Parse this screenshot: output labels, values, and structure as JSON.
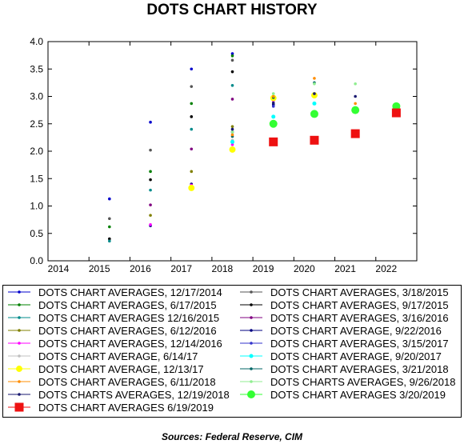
{
  "title": "DOTS CHART HISTORY",
  "source": "Sources:  Federal Reserve, CIM",
  "chart_data": {
    "type": "scatter",
    "title": "DOTS CHART HISTORY",
    "xlabel": "",
    "ylabel": "",
    "xlim": [
      2014,
      2023
    ],
    "ylim": [
      0.0,
      4.0
    ],
    "x_ticks": [
      "2014",
      "2015",
      "2016",
      "2017",
      "2018",
      "2019",
      "2020",
      "2021",
      "2022"
    ],
    "y_ticks": [
      "0.0",
      "0.5",
      "1.0",
      "1.5",
      "2.0",
      "2.5",
      "3.0",
      "3.5",
      "4.0"
    ],
    "grid": false,
    "legend_position": "below",
    "series": [
      {
        "name": "DOTS CHART AVERAGES, 12/17/2014",
        "color": "#0000cc",
        "shape": "dot",
        "x": [
          2015.5,
          2016.5,
          2017.5,
          2018.5
        ],
        "y": [
          1.13,
          2.53,
          3.5,
          3.78
        ]
      },
      {
        "name": "DOTS CHART AVERAGES, 3/18/2015",
        "color": "#555555",
        "shape": "dot",
        "x": [
          2015.5,
          2016.5,
          2017.5,
          2018.5
        ],
        "y": [
          0.77,
          2.02,
          3.18,
          3.66
        ]
      },
      {
        "name": "DOTS CHART AVERAGES, 6/17/2015",
        "color": "#008000",
        "shape": "dot",
        "x": [
          2015.5,
          2016.5,
          2017.5,
          2018.5
        ],
        "y": [
          0.62,
          1.63,
          2.87,
          3.74
        ]
      },
      {
        "name": "DOTS CHART AVERAGES, 9/17/2015",
        "color": "#000000",
        "shape": "dot",
        "x": [
          2015.5,
          2016.5,
          2017.5,
          2018.5
        ],
        "y": [
          0.4,
          1.48,
          2.63,
          3.45
        ]
      },
      {
        "name": "DOTS CHART AVERAGES 12/16/2015",
        "color": "#008b8b",
        "shape": "dot",
        "x": [
          2015.5,
          2016.5,
          2017.5,
          2018.5
        ],
        "y": [
          0.36,
          1.29,
          2.4,
          3.2
        ]
      },
      {
        "name": "DOTS CHART AVERAGES, 3/16/2016",
        "color": "#800080",
        "shape": "dot",
        "x": [
          2016.5,
          2017.5,
          2018.5
        ],
        "y": [
          1.02,
          2.04,
          2.95
        ]
      },
      {
        "name": "DOTS CHART AVERAGES, 6/12/2016",
        "color": "#808000",
        "shape": "dot",
        "x": [
          2016.5,
          2017.5,
          2018.5
        ],
        "y": [
          0.83,
          1.63,
          2.45
        ]
      },
      {
        "name": "DOTS CHART AVERAGE, 9/22/2016",
        "color": "#000080",
        "shape": "dot",
        "x": [
          2016.5,
          2017.5,
          2018.5,
          2019.5
        ],
        "y": [
          0.64,
          1.4,
          2.35,
          2.85
        ]
      },
      {
        "name": "DOTS CHART AVERAGES, 12/14/2016",
        "color": "#ff00ff",
        "shape": "dot",
        "x": [
          2016.5,
          2017.5,
          2018.5,
          2019.5
        ],
        "y": [
          0.66,
          1.38,
          2.12,
          2.92
        ]
      },
      {
        "name": "DOTS CHART AVERAGES, 3/15/2017",
        "color": "#3333cc",
        "shape": "dot",
        "x": [
          2017.5,
          2018.5,
          2019.5
        ],
        "y": [
          1.35,
          2.18,
          2.82
        ]
      },
      {
        "name": "DOTS CHART AVERAGE, 6/14/17",
        "color": "#c0c0c0",
        "shape": "dot",
        "x": [
          2017.5,
          2018.5,
          2019.5
        ],
        "y": [
          1.36,
          2.2,
          2.95
        ]
      },
      {
        "name": "DOTS CHART AVERAGE, 9/20/2017",
        "color": "#00ffff",
        "shape": "dot",
        "x": [
          2017.5,
          2018.5,
          2019.5,
          2020.5
        ],
        "y": [
          1.34,
          2.17,
          2.63,
          2.87
        ]
      },
      {
        "name": "DOTS CHART AVERAGE, 12/13/17",
        "color": "#ffff00",
        "shape": "dot",
        "x": [
          2017.5,
          2018.5,
          2019.5,
          2020.5
        ],
        "y": [
          1.33,
          2.03,
          2.97,
          3.02
        ]
      },
      {
        "name": "DOTS CHART AVERAGES, 3/21/2018",
        "color": "#006666",
        "shape": "dot",
        "x": [
          2018.5,
          2019.5,
          2020.5
        ],
        "y": [
          2.27,
          2.98,
          3.25
        ]
      },
      {
        "name": "DOTS CHART AVERAGES, 6/11/2018",
        "color": "#ff8c00",
        "shape": "dot",
        "x": [
          2018.5,
          2019.5,
          2020.5,
          2021.5
        ],
        "y": [
          2.3,
          3.0,
          3.33,
          2.87
        ]
      },
      {
        "name": "DOTS CHARTS AVERAGES, 9/26/2018",
        "color": "#90ee90",
        "shape": "dot",
        "x": [
          2018.5,
          2019.5,
          2020.5,
          2021.5
        ],
        "y": [
          2.35,
          3.05,
          3.23,
          3.23
        ]
      },
      {
        "name": "DOTS CHARTS AVERAGES, 12/19/2018",
        "color": "#191970",
        "shape": "dot",
        "x": [
          2018.5,
          2019.5,
          2020.5,
          2021.5
        ],
        "y": [
          2.4,
          2.88,
          3.05,
          3.0
        ]
      },
      {
        "name": "DOTS CHART AVERAGES 3/20/2019",
        "color": "#33ff33",
        "shape": "circle",
        "x": [
          2019.5,
          2020.5,
          2021.5,
          2022.5
        ],
        "y": [
          2.5,
          2.68,
          2.75,
          2.82
        ]
      },
      {
        "name": "DOTS CHART AVERAGES 6/19/2019",
        "color": "#ee1111",
        "shape": "square",
        "x": [
          2019.5,
          2020.5,
          2021.5,
          2022.5
        ],
        "y": [
          2.17,
          2.2,
          2.32,
          2.7
        ]
      }
    ]
  }
}
